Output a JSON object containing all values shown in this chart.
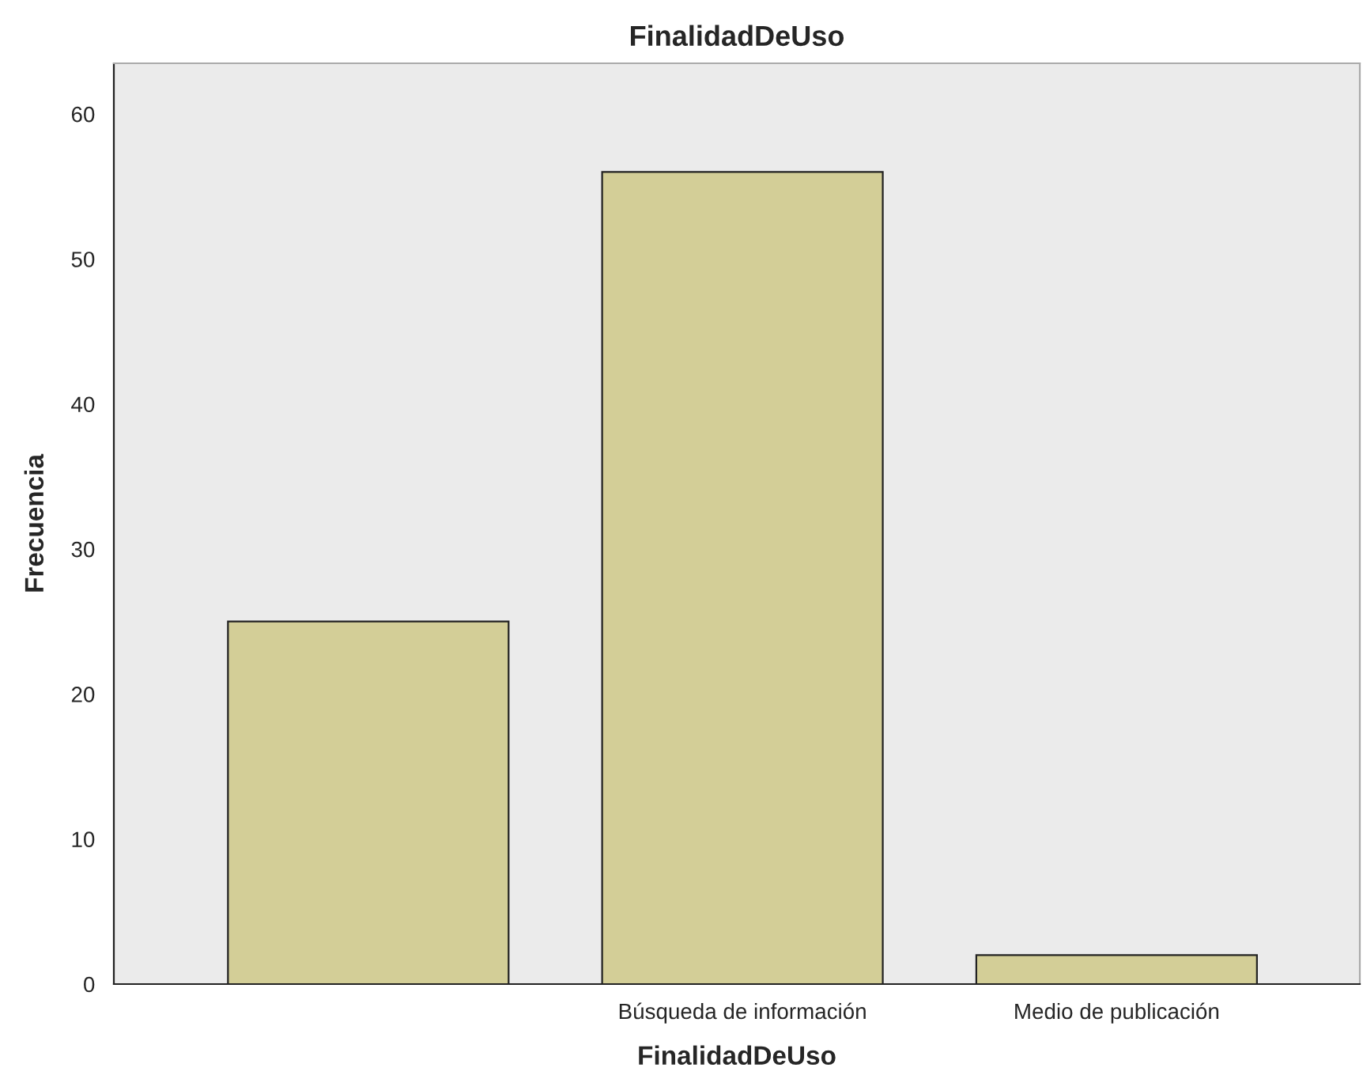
{
  "chart_data": {
    "type": "bar",
    "title": "FinalidadDeUso",
    "xlabel": "FinalidadDeUso",
    "ylabel": "Frecuencia",
    "categories": [
      null,
      "Búsqueda de información",
      "Medio de publicación"
    ],
    "values": [
      25,
      56,
      2
    ],
    "color": "#d3ce97",
    "ylim": [
      0,
      63.5
    ],
    "yticks": [
      0,
      10,
      20,
      30,
      40,
      50,
      60
    ],
    "grid": false,
    "legend": false
  }
}
